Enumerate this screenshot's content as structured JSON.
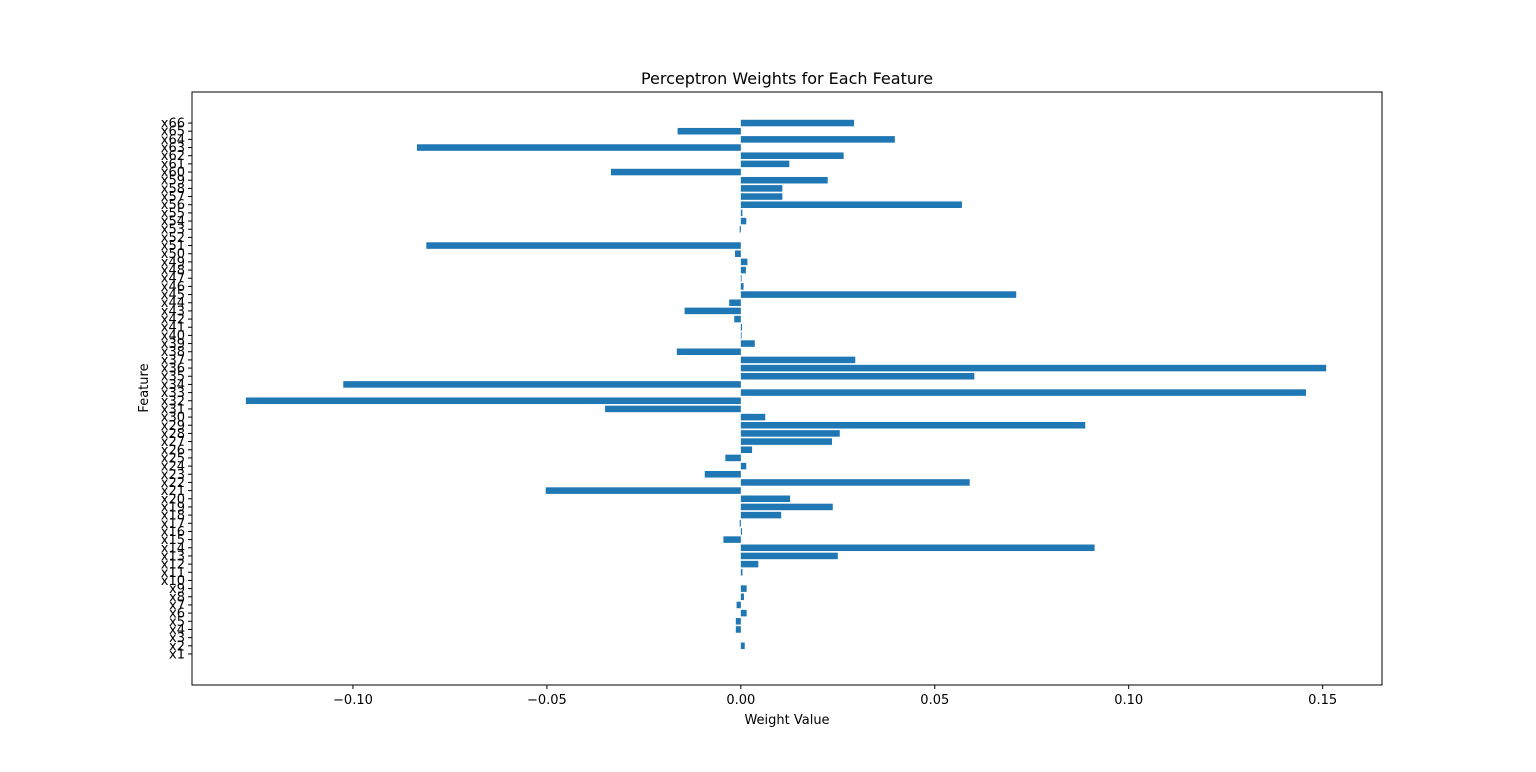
{
  "chart_data": {
    "type": "bar",
    "orientation": "horizontal",
    "title": "Perceptron Weights for Each Feature",
    "xlabel": "Weight Value",
    "ylabel": "Feature",
    "xlim": [
      -0.1415,
      0.1653
    ],
    "xticks": [
      -0.1,
      -0.05,
      0.0,
      0.05,
      0.1,
      0.15
    ],
    "xtick_labels": [
      "−0.10",
      "−0.05",
      "0.00",
      "0.05",
      "0.10",
      "0.15"
    ],
    "bar_color": "#1f77b4",
    "grid": false,
    "categories": [
      "x1",
      "x2",
      "x3",
      "x4",
      "x5",
      "x6",
      "x7",
      "x8",
      "x9",
      "x10",
      "x11",
      "x12",
      "x13",
      "x14",
      "x15",
      "x16",
      "x17",
      "x18",
      "x19",
      "x20",
      "x21",
      "x22",
      "x23",
      "x24",
      "x25",
      "x26",
      "x27",
      "x28",
      "x29",
      "x30",
      "x31",
      "x32",
      "x33",
      "x34",
      "x35",
      "x36",
      "x37",
      "x38",
      "x39",
      "x40",
      "x41",
      "x42",
      "x43",
      "x44",
      "x45",
      "x46",
      "x47",
      "x48",
      "x49",
      "x50",
      "x51",
      "x52",
      "x53",
      "x54",
      "x55",
      "x56",
      "x57",
      "x58",
      "x59",
      "x60",
      "x61",
      "x62",
      "x63",
      "x64",
      "x65",
      "x66"
    ],
    "values": [
      0.0,
      0.001,
      0.0,
      -0.0013,
      -0.0013,
      0.0015,
      -0.0011,
      0.0008,
      0.0015,
      0.0,
      0.0004,
      0.0045,
      0.025,
      0.0912,
      -0.0045,
      0.0003,
      -0.0003,
      0.0104,
      0.0237,
      0.0127,
      -0.0503,
      0.059,
      -0.0093,
      0.0014,
      -0.004,
      0.0029,
      0.0235,
      0.0255,
      0.0888,
      0.0063,
      -0.035,
      -0.1276,
      0.1457,
      -0.1025,
      0.0602,
      0.1509,
      0.0295,
      -0.0165,
      0.0036,
      0.0002,
      0.0003,
      -0.0017,
      -0.0145,
      -0.003,
      0.071,
      0.0007,
      0.0002,
      0.0013,
      0.0017,
      -0.0015,
      -0.0811,
      0.0,
      -0.0003,
      0.0014,
      0.0004,
      0.057,
      0.0107,
      0.0107,
      0.0224,
      -0.0335,
      0.0125,
      0.0265,
      -0.0835,
      0.0397,
      -0.0163,
      0.0292
    ]
  }
}
